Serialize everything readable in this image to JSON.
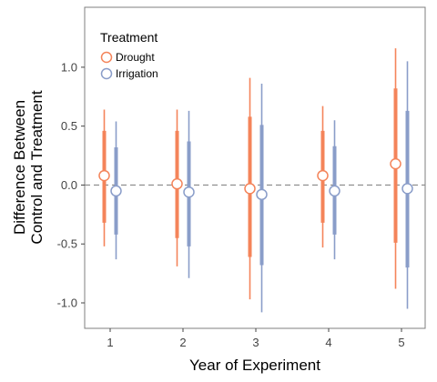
{
  "chart_data": {
    "type": "scatter",
    "subtype": "point-range with inner and outer intervals",
    "xlabel": "Year of Experiment",
    "ylabel_lines": [
      "Difference Between",
      "Control and Treatment"
    ],
    "categories": [
      "1",
      "2",
      "3",
      "4",
      "5"
    ],
    "ylim": [
      -1.18,
      1.27
    ],
    "yticks": [
      -1.0,
      -0.5,
      0.0,
      0.5,
      1.0
    ],
    "ytick_labels": [
      "-1.0",
      "-0.5",
      "0.0",
      "0.5",
      "1.0"
    ],
    "reference_line": {
      "y": 0.0,
      "style": "dashed",
      "color": "#888888"
    },
    "grid": false,
    "legend": {
      "title": "Treatment",
      "position": "top-left"
    },
    "series": [
      {
        "name": "Drought",
        "color": "#F4845A",
        "points": [
          {
            "x": "1",
            "estimate": 0.08,
            "inner": [
              -0.32,
              0.46
            ],
            "outer": [
              -0.52,
              0.64
            ]
          },
          {
            "x": "2",
            "estimate": 0.01,
            "inner": [
              -0.45,
              0.46
            ],
            "outer": [
              -0.69,
              0.64
            ]
          },
          {
            "x": "3",
            "estimate": -0.03,
            "inner": [
              -0.61,
              0.58
            ],
            "outer": [
              -0.97,
              0.91
            ]
          },
          {
            "x": "4",
            "estimate": 0.08,
            "inner": [
              -0.32,
              0.46
            ],
            "outer": [
              -0.53,
              0.67
            ]
          },
          {
            "x": "5",
            "estimate": 0.18,
            "inner": [
              -0.49,
              0.82
            ],
            "outer": [
              -0.88,
              1.16
            ]
          }
        ]
      },
      {
        "name": "Irrigation",
        "color": "#8A9DC9",
        "points": [
          {
            "x": "1",
            "estimate": -0.05,
            "inner": [
              -0.42,
              0.32
            ],
            "outer": [
              -0.63,
              0.54
            ]
          },
          {
            "x": "2",
            "estimate": -0.06,
            "inner": [
              -0.52,
              0.37
            ],
            "outer": [
              -0.79,
              0.63
            ]
          },
          {
            "x": "3",
            "estimate": -0.08,
            "inner": [
              -0.68,
              0.51
            ],
            "outer": [
              -1.08,
              0.86
            ]
          },
          {
            "x": "4",
            "estimate": -0.05,
            "inner": [
              -0.42,
              0.33
            ],
            "outer": [
              -0.63,
              0.55
            ]
          },
          {
            "x": "5",
            "estimate": -0.03,
            "inner": [
              -0.7,
              0.63
            ],
            "outer": [
              -1.05,
              1.05
            ]
          }
        ]
      }
    ]
  }
}
